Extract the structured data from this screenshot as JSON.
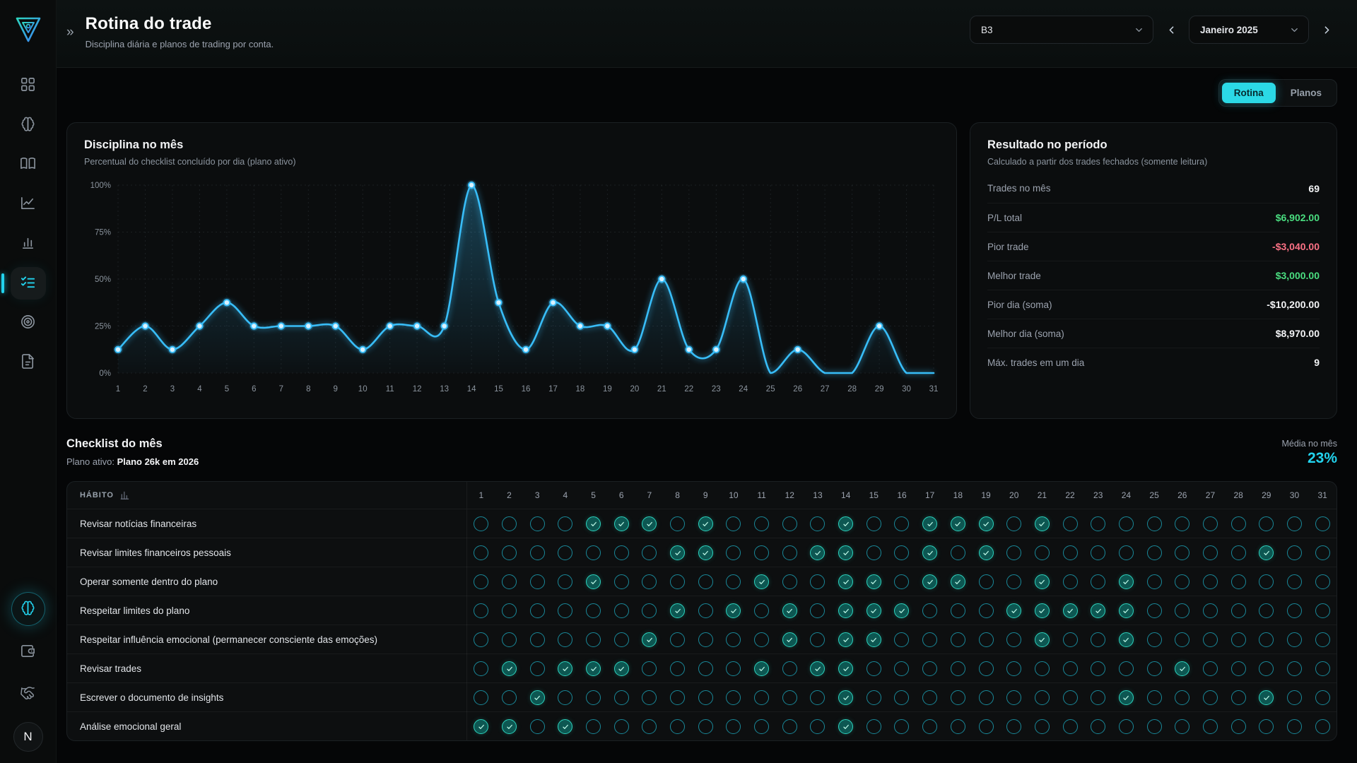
{
  "app": {
    "collapse_icon": "»",
    "title": "Rotina do trade",
    "subtitle": "Disciplina diária e planos de trading por conta."
  },
  "header_controls": {
    "account_value": "B3",
    "month_value": "Janeiro 2025"
  },
  "tabs": [
    {
      "id": "rotina",
      "label": "Rotina",
      "active": true
    },
    {
      "id": "planos",
      "label": "Planos",
      "active": false
    }
  ],
  "sidebar": {
    "items": [
      {
        "id": "dashboard",
        "icon": "dashboard",
        "active": false
      },
      {
        "id": "mind",
        "icon": "brain",
        "active": false
      },
      {
        "id": "journal",
        "icon": "book",
        "active": false
      },
      {
        "id": "performance",
        "icon": "line-chart",
        "active": false
      },
      {
        "id": "stats",
        "icon": "bar-chart",
        "active": false
      },
      {
        "id": "routine",
        "icon": "checklist",
        "active": true
      },
      {
        "id": "goals",
        "icon": "target",
        "active": false
      },
      {
        "id": "notes",
        "icon": "document",
        "active": false
      }
    ],
    "bottom_items": [
      {
        "id": "assistant",
        "icon": "brain",
        "accent": true
      },
      {
        "id": "wallet",
        "icon": "wallet",
        "accent": false
      },
      {
        "id": "partners",
        "icon": "handshake",
        "accent": false
      }
    ],
    "avatar_label": "N"
  },
  "discipline_card": {
    "title": "Disciplina no mês",
    "subtitle": "Percentual do checklist concluído por dia (plano ativo)"
  },
  "chart_data": {
    "type": "line",
    "title": "Disciplina no mês",
    "x": [
      1,
      2,
      3,
      4,
      5,
      6,
      7,
      8,
      9,
      10,
      11,
      12,
      13,
      14,
      15,
      16,
      17,
      18,
      19,
      20,
      21,
      22,
      23,
      24,
      25,
      26,
      27,
      28,
      29,
      30,
      31
    ],
    "values": [
      12.5,
      25,
      12.5,
      25,
      37.5,
      25,
      25,
      25,
      25,
      12.5,
      25,
      25,
      25,
      100,
      37.5,
      12.5,
      37.5,
      25,
      25,
      12.5,
      50,
      12.5,
      12.5,
      50,
      0,
      12.5,
      0,
      0,
      25,
      0,
      0
    ],
    "ylim": [
      0,
      100
    ],
    "yticks": [
      "0%",
      "25%",
      "50%",
      "75%",
      "100%"
    ],
    "xlabel": "",
    "ylabel": "",
    "grid": true,
    "legend": "none",
    "line_color": "#38bdf8"
  },
  "results_card": {
    "title": "Resultado no período",
    "subtitle": "Calculado a partir dos trades fechados (somente leitura)",
    "rows": [
      {
        "label": "Trades no mês",
        "value": "69",
        "color": "default"
      },
      {
        "label": "P/L total",
        "value": "$6,902.00",
        "color": "green"
      },
      {
        "label": "Pior trade",
        "value": "-$3,040.00",
        "color": "red"
      },
      {
        "label": "Melhor trade",
        "value": "$3,000.00",
        "color": "green"
      },
      {
        "label": "Pior dia (soma)",
        "value": "-$10,200.00",
        "color": "default"
      },
      {
        "label": "Melhor dia (soma)",
        "value": "$8,970.00",
        "color": "default"
      },
      {
        "label": "Máx. trades em um dia",
        "value": "9",
        "color": "default"
      }
    ]
  },
  "checklist": {
    "title": "Checklist do mês",
    "plan_label": "Plano ativo:",
    "plan_name": "Plano 26k em 2026",
    "avg_label": "Média no mês",
    "avg_value": "23%",
    "column_header": "HÁBITO",
    "days": [
      1,
      2,
      3,
      4,
      5,
      6,
      7,
      8,
      9,
      10,
      11,
      12,
      13,
      14,
      15,
      16,
      17,
      18,
      19,
      20,
      21,
      22,
      23,
      24,
      25,
      26,
      27,
      28,
      29,
      30,
      31
    ],
    "habits": [
      {
        "name": "Revisar notícias financeiras",
        "checked_days": [
          5,
          6,
          7,
          9,
          14,
          17,
          18,
          19,
          21
        ]
      },
      {
        "name": "Revisar limites financeiros pessoais",
        "checked_days": [
          8,
          9,
          13,
          14,
          17,
          19,
          29
        ]
      },
      {
        "name": "Operar somente dentro do plano",
        "checked_days": [
          5,
          11,
          14,
          15,
          17,
          18,
          21,
          24
        ]
      },
      {
        "name": "Respeitar limites do plano",
        "checked_days": [
          8,
          10,
          12,
          14,
          15,
          16,
          20,
          21,
          22,
          23,
          24
        ]
      },
      {
        "name": "Respeitar influência emocional (permanecer consciente das emoções)",
        "checked_days": [
          7,
          12,
          14,
          15,
          21,
          24
        ]
      },
      {
        "name": "Revisar trades",
        "checked_days": [
          2,
          4,
          5,
          6,
          11,
          13,
          14,
          26
        ]
      },
      {
        "name": "Escrever o documento de insights",
        "checked_days": [
          3,
          14,
          24,
          29
        ]
      },
      {
        "name": "Análise emocional geral",
        "checked_days": [
          1,
          2,
          4,
          14
        ]
      }
    ]
  },
  "colors": {
    "accent": "#22d3ee",
    "line": "#38bdf8",
    "green": "#4ade80",
    "red": "#fb7185",
    "check": "#2dd4bf"
  }
}
